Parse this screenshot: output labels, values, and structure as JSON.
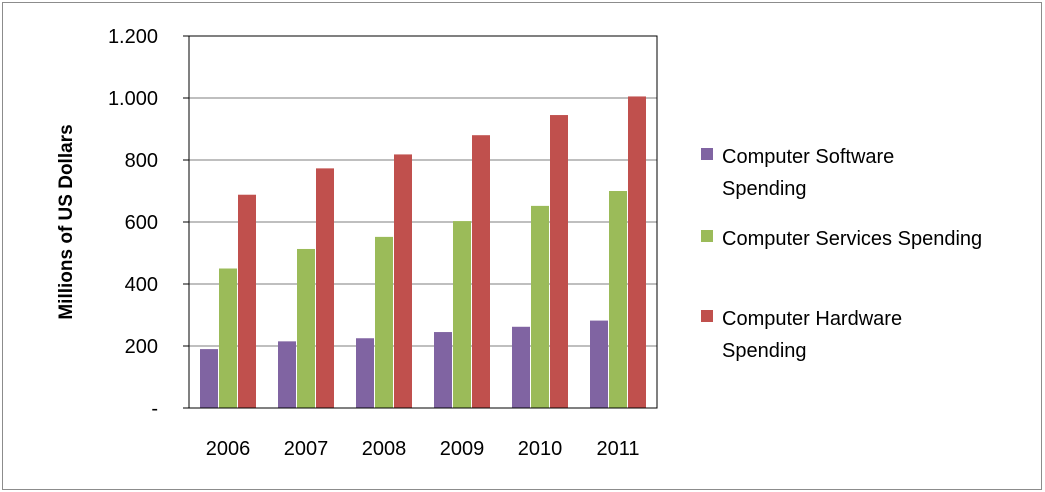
{
  "chart_data": {
    "type": "bar",
    "title": "",
    "xlabel": "",
    "ylabel": "Millions of US Dollars",
    "ylim": [
      0,
      1200
    ],
    "yticks": [
      {
        "value": 0,
        "label": "-"
      },
      {
        "value": 200,
        "label": "200"
      },
      {
        "value": 400,
        "label": "400"
      },
      {
        "value": 600,
        "label": "600"
      },
      {
        "value": 800,
        "label": "800"
      },
      {
        "value": 1000,
        "label": "1.000"
      },
      {
        "value": 1200,
        "label": "1.200"
      }
    ],
    "grid": true,
    "legend_position": "right",
    "categories": [
      "2006",
      "2007",
      "2008",
      "2009",
      "2010",
      "2011"
    ],
    "series": [
      {
        "name": "Computer Software Spending",
        "legend_lines": [
          "Computer Software",
          "Spending"
        ],
        "color": "#8064a2",
        "values": [
          190,
          215,
          225,
          245,
          262,
          282
        ]
      },
      {
        "name": "Computer Services Spending",
        "legend_lines": [
          "Computer Services Spending"
        ],
        "color": "#9bbb59",
        "values": [
          450,
          513,
          552,
          603,
          652,
          700
        ]
      },
      {
        "name": "Computer Hardware Spending",
        "legend_lines": [
          "Computer Hardware",
          "Spending"
        ],
        "color": "#c0504d",
        "values": [
          688,
          773,
          818,
          880,
          945,
          1005
        ]
      }
    ]
  }
}
